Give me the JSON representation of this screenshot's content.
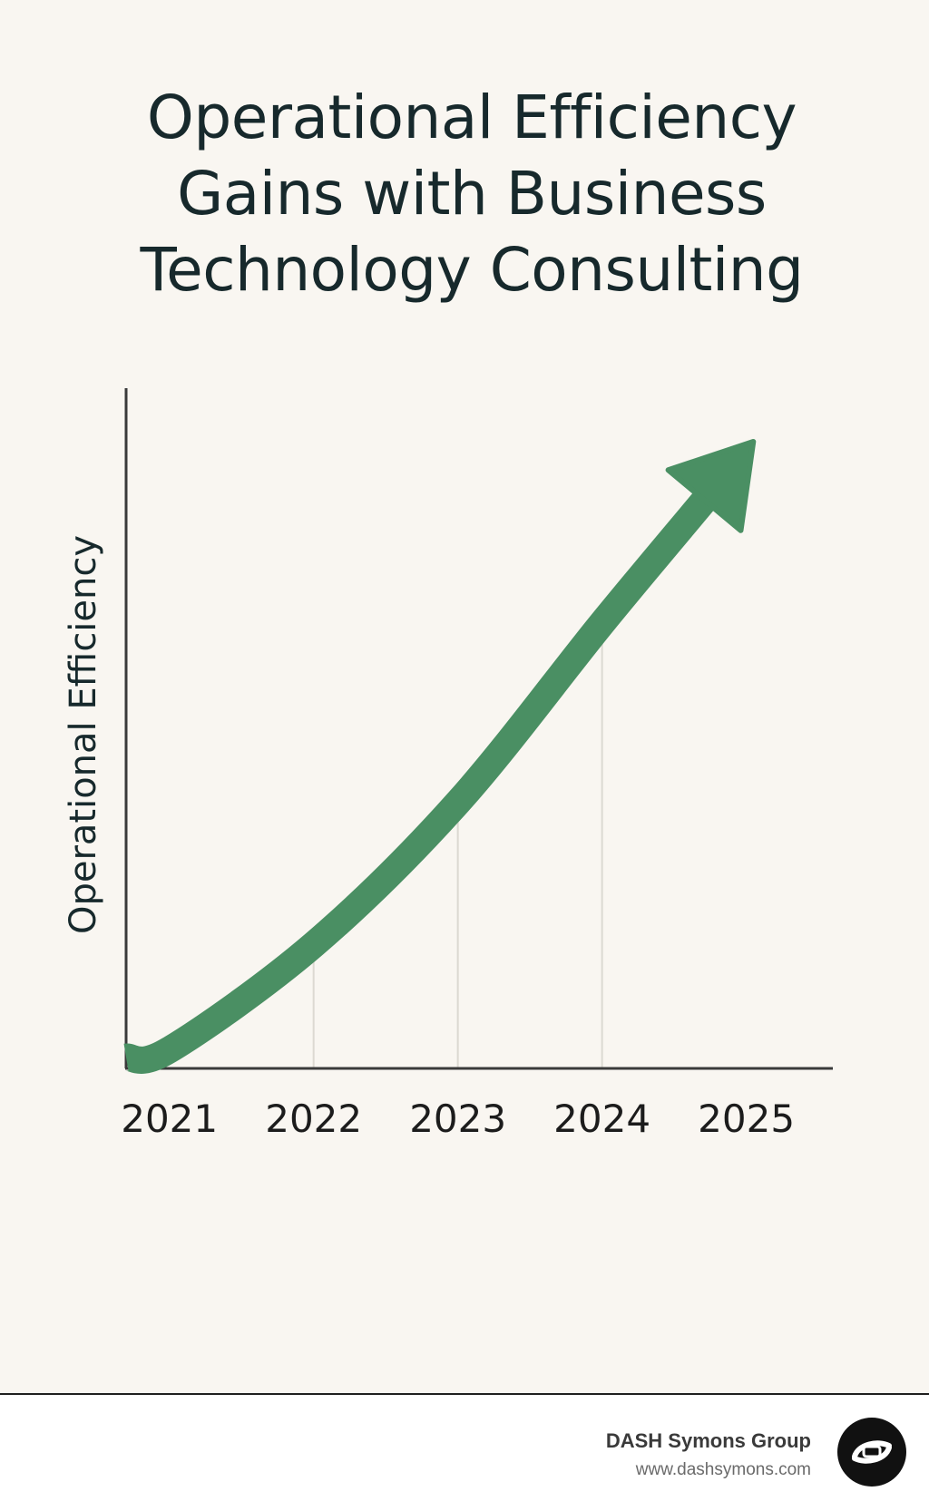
{
  "chart_data": {
    "type": "line",
    "title_lines": [
      "Operational Efficiency",
      "Gains with Business",
      "Technology Consulting"
    ],
    "xlabel": "",
    "ylabel": "Operational Efficiency",
    "categories": [
      "2021",
      "2022",
      "2023",
      "2024",
      "2025"
    ],
    "x": [
      2021,
      2022,
      2023,
      2024,
      2025
    ],
    "values": [
      3,
      20,
      43,
      72,
      100
    ],
    "xlim": [
      2020.7,
      2025.6
    ],
    "ylim": [
      0,
      110
    ],
    "grid": "vertical",
    "line_color": "#4a8f63",
    "axis_color": "#3a3a3a",
    "grid_color": "#dcd9d2",
    "arrow_end": true
  },
  "footer": {
    "brand": "DASH Symons Group",
    "url": "www.dashsymons.com"
  },
  "icons": {
    "logo": "dash-logo-icon"
  }
}
